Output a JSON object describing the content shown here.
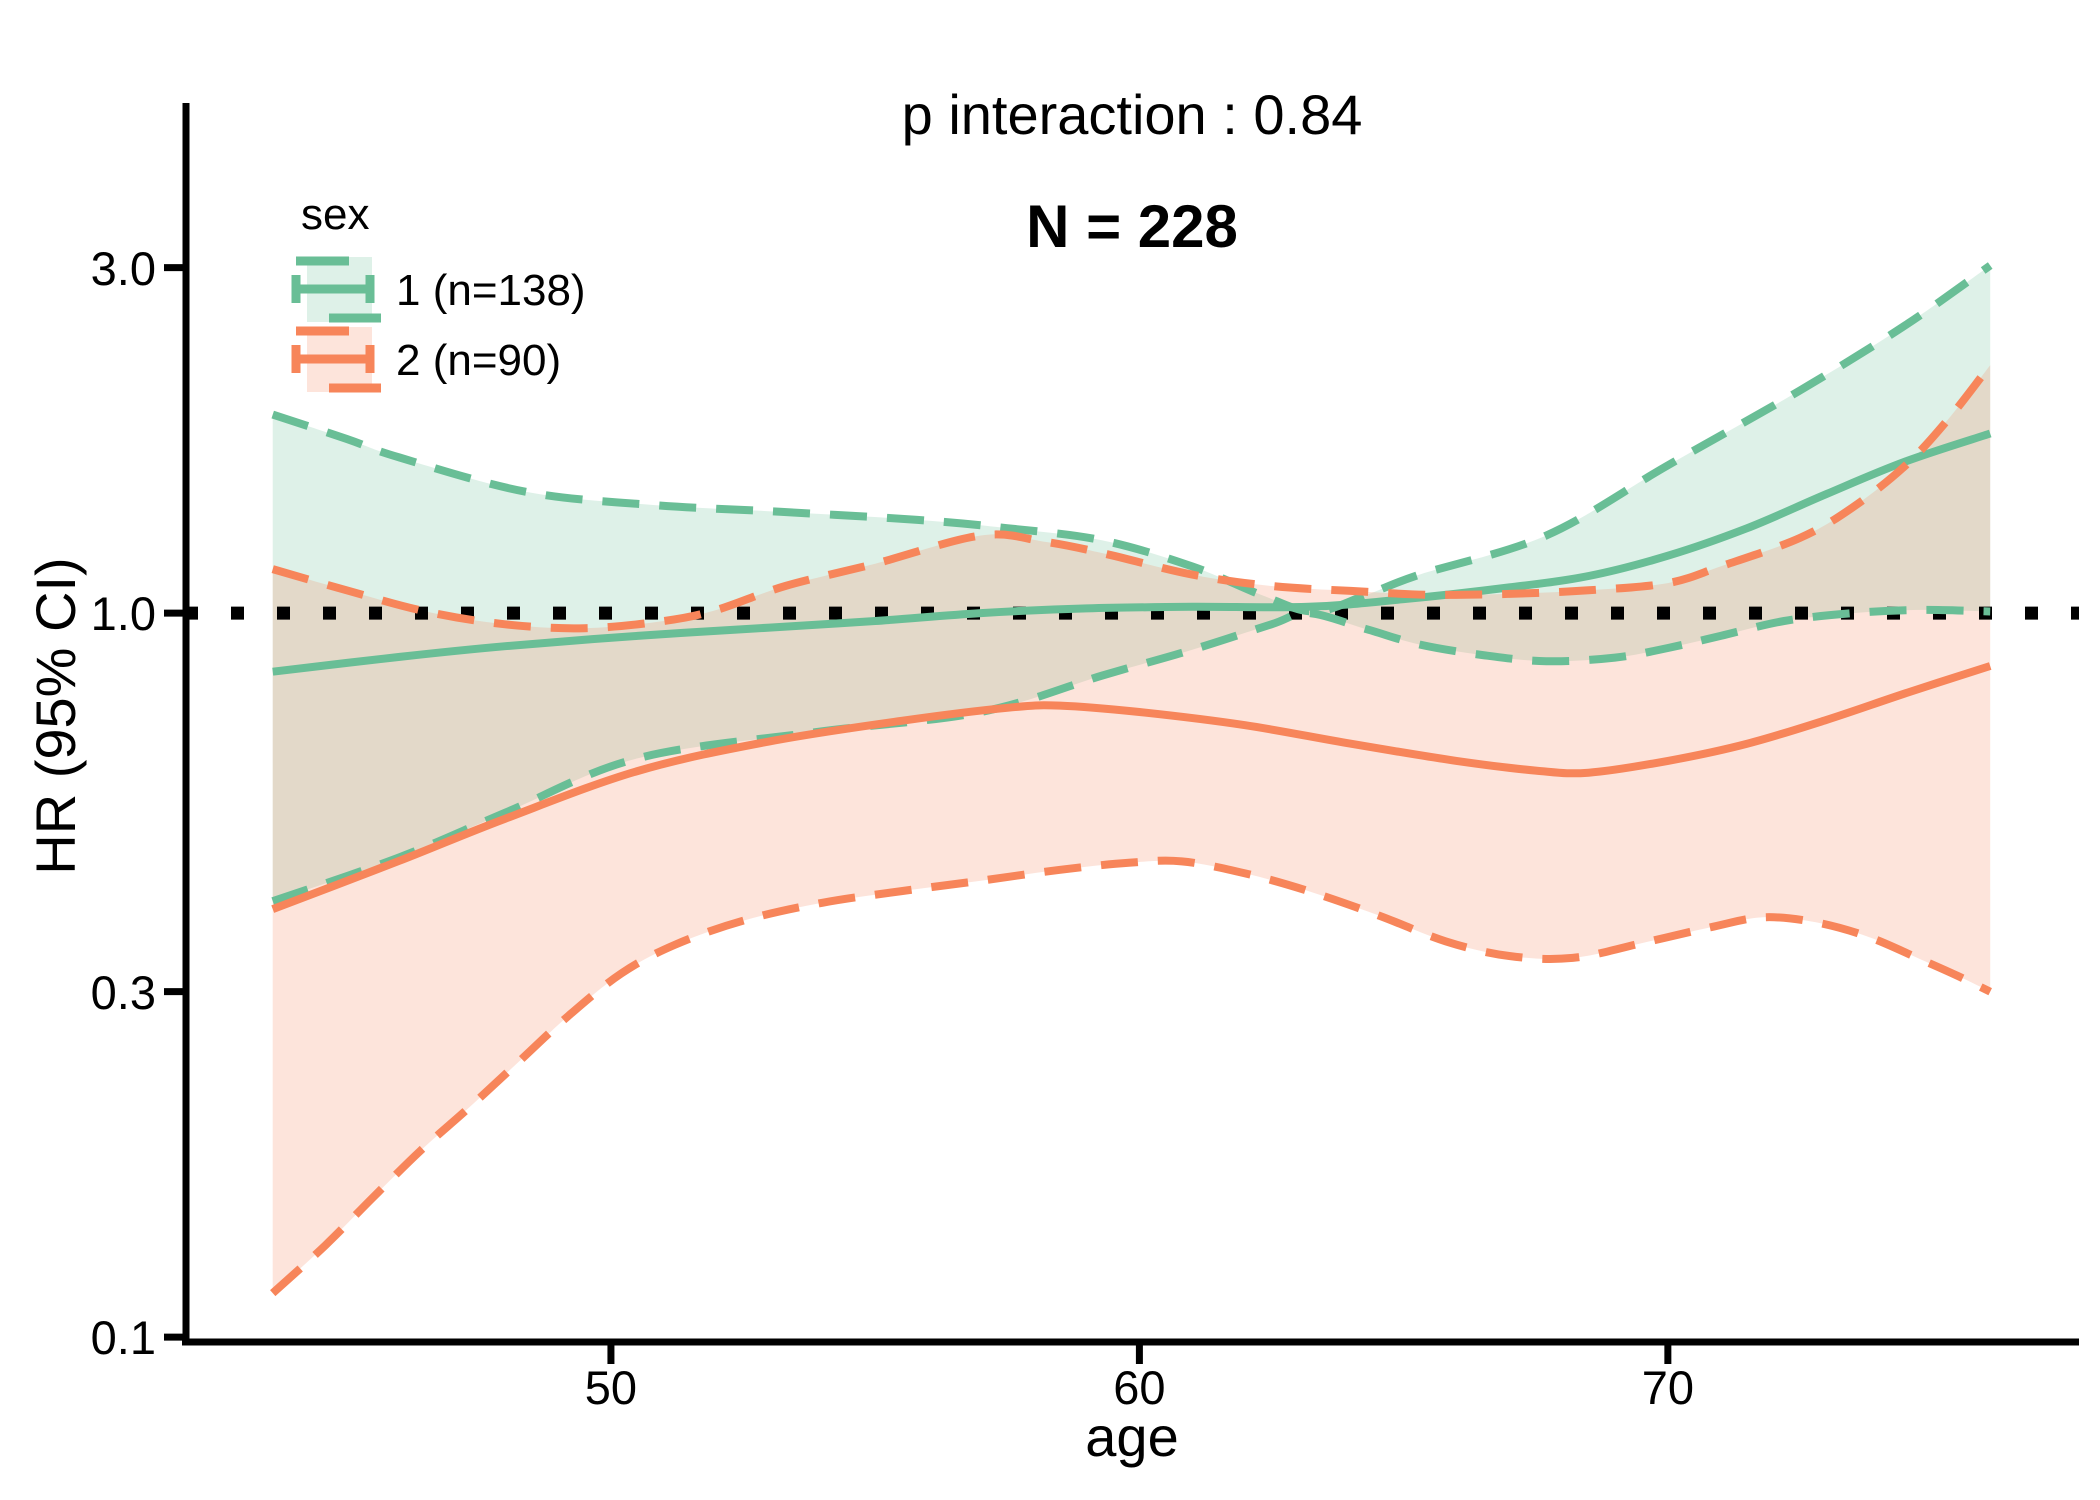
{
  "chart_data": {
    "type": "line",
    "title": "p interaction : 0.84",
    "annotation": "N = 228",
    "xlabel": "age",
    "ylabel": "HR (95% CI)",
    "y_scale": "log10",
    "grid": false,
    "x_domain": [
      41.94,
      77.78
    ],
    "y_domain": [
      0.0994,
      5.064
    ],
    "x_ticks": [
      {
        "label": "50",
        "value": 50
      },
      {
        "label": "60",
        "value": 60
      },
      {
        "label": "70",
        "value": 70
      }
    ],
    "y_ticks": [
      {
        "label": "3.0",
        "value": 3.0
      },
      {
        "label": "1.0",
        "value": 1.0
      },
      {
        "label": "0.3",
        "value": 0.3
      },
      {
        "label": "0.1",
        "value": 0.1
      }
    ],
    "reference_line": {
      "value": 1.0,
      "style": "dotted",
      "color": "#000000"
    },
    "colors": {
      "sex1": "#69BE96",
      "sex2": "#F7855A",
      "ribbon_opacity": 0.22,
      "axis": "#000000",
      "text": "#000000"
    },
    "legend": {
      "title": "sex",
      "position": "top-left-inside",
      "entries": [
        {
          "id": "sex1",
          "label": "1 (n=138)"
        },
        {
          "id": "sex2",
          "label": "2 (n=90)"
        }
      ]
    },
    "series": [
      {
        "name": "sex1-estimate",
        "group": "sex1",
        "line": "solid",
        "points": [
          [
            43.6,
            0.83
          ],
          [
            46,
            0.87
          ],
          [
            48,
            0.9
          ],
          [
            50.5,
            0.93
          ],
          [
            53,
            0.955
          ],
          [
            55,
            0.975
          ],
          [
            57,
            1.0
          ],
          [
            59,
            1.015
          ],
          [
            61,
            1.02
          ],
          [
            63.2,
            1.02
          ],
          [
            65,
            1.045
          ],
          [
            67,
            1.085
          ],
          [
            68.5,
            1.125
          ],
          [
            70,
            1.2
          ],
          [
            71.5,
            1.31
          ],
          [
            73,
            1.46
          ],
          [
            74.5,
            1.62
          ],
          [
            76.1,
            1.77
          ]
        ]
      },
      {
        "name": "sex1-upper-ci",
        "group": "sex1",
        "line": "dashed",
        "points": [
          [
            43.6,
            1.88
          ],
          [
            45,
            1.74
          ],
          [
            46,
            1.64
          ],
          [
            48.4,
            1.47
          ],
          [
            50.8,
            1.41
          ],
          [
            53.2,
            1.38
          ],
          [
            55.8,
            1.345
          ],
          [
            57.5,
            1.31
          ],
          [
            59.3,
            1.26
          ],
          [
            61,
            1.16
          ],
          [
            62.3,
            1.06
          ],
          [
            63.3,
            1.005
          ],
          [
            64.3,
            1.06
          ],
          [
            65.3,
            1.13
          ],
          [
            67.7,
            1.28
          ],
          [
            70,
            1.6
          ],
          [
            72.5,
            2.03
          ],
          [
            74.5,
            2.5
          ],
          [
            76.1,
            3.02
          ]
        ]
      },
      {
        "name": "sex1-lower-ci",
        "group": "sex1",
        "line": "dashed",
        "points": [
          [
            43.6,
            0.4
          ],
          [
            46,
            0.46
          ],
          [
            48,
            0.53
          ],
          [
            50.5,
            0.63
          ],
          [
            53.9,
            0.685
          ],
          [
            57,
            0.73
          ],
          [
            59.3,
            0.82
          ],
          [
            61,
            0.89
          ],
          [
            62.5,
            0.965
          ],
          [
            63.2,
            1.0
          ],
          [
            64.3,
            0.95
          ],
          [
            65.3,
            0.905
          ],
          [
            66.5,
            0.875
          ],
          [
            67.7,
            0.858
          ],
          [
            69,
            0.868
          ],
          [
            70,
            0.895
          ],
          [
            71,
            0.93
          ],
          [
            72.2,
            0.975
          ],
          [
            73.5,
            1.0
          ],
          [
            74.8,
            1.01
          ],
          [
            76.1,
            1.005
          ]
        ]
      },
      {
        "name": "sex2-estimate",
        "group": "sex2",
        "line": "solid",
        "points": [
          [
            43.6,
            0.39
          ],
          [
            46,
            0.455
          ],
          [
            48,
            0.52
          ],
          [
            50.5,
            0.605
          ],
          [
            53,
            0.665
          ],
          [
            55.5,
            0.71
          ],
          [
            57.5,
            0.74
          ],
          [
            58.5,
            0.745
          ],
          [
            60,
            0.73
          ],
          [
            62,
            0.7
          ],
          [
            64,
            0.66
          ],
          [
            66,
            0.625
          ],
          [
            67.5,
            0.606
          ],
          [
            68.5,
            0.602
          ],
          [
            70,
            0.625
          ],
          [
            71.5,
            0.66
          ],
          [
            73,
            0.712
          ],
          [
            74.5,
            0.775
          ],
          [
            76.1,
            0.845
          ]
        ]
      },
      {
        "name": "sex2-upper-ci",
        "group": "sex2",
        "line": "dashed",
        "points": [
          [
            43.6,
            1.15
          ],
          [
            45,
            1.075
          ],
          [
            46.5,
            1.005
          ],
          [
            48,
            0.965
          ],
          [
            49.5,
            0.953
          ],
          [
            51,
            0.975
          ],
          [
            52,
            1.01
          ],
          [
            53.3,
            1.09
          ],
          [
            55,
            1.17
          ],
          [
            57,
            1.28
          ],
          [
            58.2,
            1.255
          ],
          [
            59.3,
            1.21
          ],
          [
            61,
            1.13
          ],
          [
            62.5,
            1.09
          ],
          [
            64,
            1.073
          ],
          [
            65.5,
            1.06
          ],
          [
            67,
            1.063
          ],
          [
            68.5,
            1.075
          ],
          [
            70,
            1.1
          ],
          [
            71,
            1.16
          ],
          [
            72.5,
            1.27
          ],
          [
            73.5,
            1.4
          ],
          [
            74.5,
            1.6
          ],
          [
            75.3,
            1.85
          ],
          [
            76.1,
            2.2
          ]
        ]
      },
      {
        "name": "sex2-lower-ci",
        "group": "sex2",
        "line": "dashed",
        "points": [
          [
            43.6,
            0.115
          ],
          [
            44.6,
            0.134
          ],
          [
            45.5,
            0.156
          ],
          [
            46.4,
            0.181
          ],
          [
            47.3,
            0.207
          ],
          [
            48.2,
            0.238
          ],
          [
            49.2,
            0.278
          ],
          [
            50.2,
            0.318
          ],
          [
            51.2,
            0.348
          ],
          [
            52.5,
            0.376
          ],
          [
            54,
            0.398
          ],
          [
            55.5,
            0.413
          ],
          [
            57,
            0.427
          ],
          [
            58.5,
            0.442
          ],
          [
            59.8,
            0.452
          ],
          [
            60.8,
            0.454
          ],
          [
            62,
            0.437
          ],
          [
            63.2,
            0.413
          ],
          [
            64.5,
            0.383
          ],
          [
            65.8,
            0.352
          ],
          [
            67,
            0.336
          ],
          [
            68.2,
            0.334
          ],
          [
            69.5,
            0.35
          ],
          [
            70.8,
            0.368
          ],
          [
            71.8,
            0.38
          ],
          [
            72.8,
            0.374
          ],
          [
            73.8,
            0.357
          ],
          [
            74.8,
            0.332
          ],
          [
            75.5,
            0.315
          ],
          [
            76.1,
            0.3
          ]
        ]
      }
    ],
    "ribbons": [
      {
        "group": "sex1",
        "upper": "sex1-upper-ci",
        "lower": "sex1-lower-ci"
      },
      {
        "group": "sex2",
        "upper": "sex2-upper-ci",
        "lower": "sex2-lower-ci"
      }
    ]
  }
}
